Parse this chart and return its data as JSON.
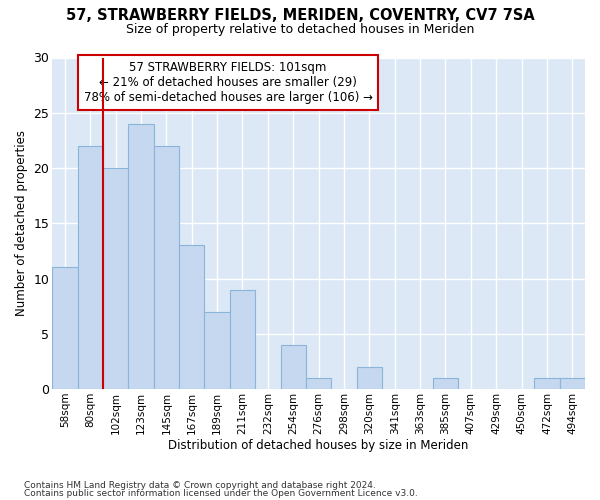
{
  "title1": "57, STRAWBERRY FIELDS, MERIDEN, COVENTRY, CV7 7SA",
  "title2": "Size of property relative to detached houses in Meriden",
  "xlabel": "Distribution of detached houses by size in Meriden",
  "ylabel": "Number of detached properties",
  "categories": [
    "58sqm",
    "80sqm",
    "102sqm",
    "123sqm",
    "145sqm",
    "167sqm",
    "189sqm",
    "211sqm",
    "232sqm",
    "254sqm",
    "276sqm",
    "298sqm",
    "320sqm",
    "341sqm",
    "363sqm",
    "385sqm",
    "407sqm",
    "429sqm",
    "450sqm",
    "472sqm",
    "494sqm"
  ],
  "values": [
    11,
    22,
    20,
    24,
    22,
    13,
    7,
    9,
    0,
    4,
    1,
    0,
    2,
    0,
    0,
    1,
    0,
    0,
    0,
    1,
    1
  ],
  "bar_color": "#c5d8f0",
  "bar_edge_color": "#8ab4d8",
  "fig_background_color": "#ffffff",
  "axes_background_color": "#dce8f5",
  "grid_color": "#ffffff",
  "ylim": [
    0,
    30
  ],
  "yticks": [
    0,
    5,
    10,
    15,
    20,
    25,
    30
  ],
  "vline_x": 1.5,
  "vline_color": "#cc0000",
  "annotation_text": "57 STRAWBERRY FIELDS: 101sqm\n← 21% of detached houses are smaller (29)\n78% of semi-detached houses are larger (106) →",
  "annotation_box_facecolor": "#ffffff",
  "annotation_box_edgecolor": "#cc0000",
  "footer1": "Contains HM Land Registry data © Crown copyright and database right 2024.",
  "footer2": "Contains public sector information licensed under the Open Government Licence v3.0."
}
